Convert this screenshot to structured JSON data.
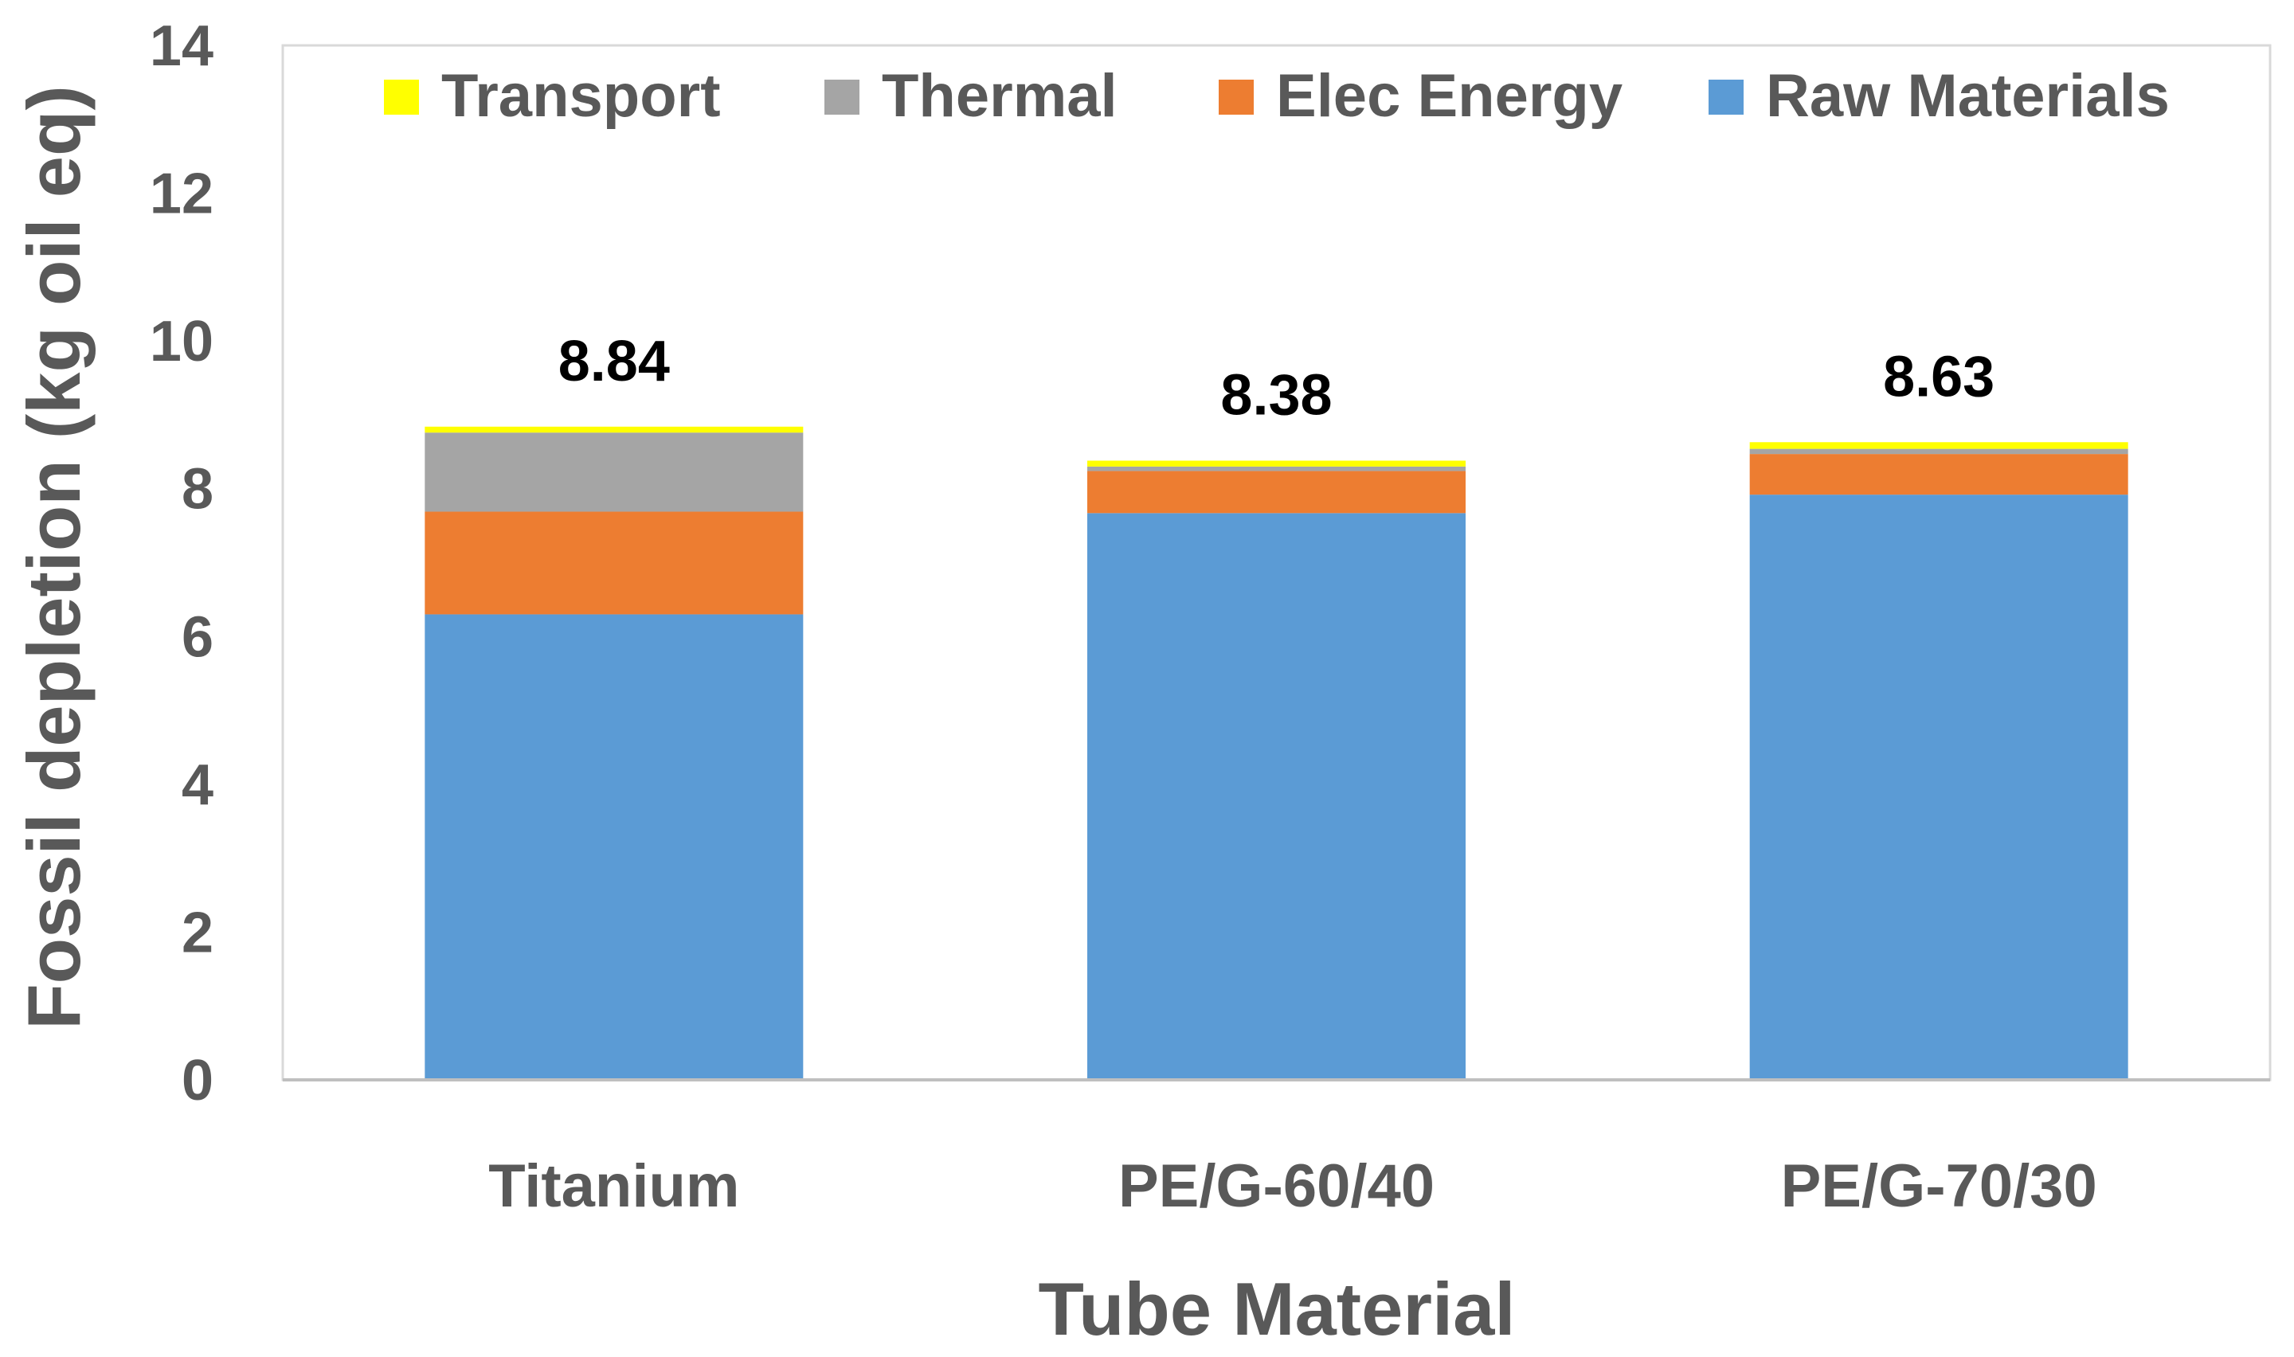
{
  "chart_data": {
    "type": "bar",
    "stacked": true,
    "xlabel": "Tube Material",
    "ylabel": "Fossil depletion (kg oil eq)",
    "ylim": [
      0,
      14
    ],
    "yticks": [
      0,
      2,
      4,
      6,
      8,
      10,
      12,
      14
    ],
    "grid": false,
    "legend_position": "top",
    "categories": [
      "Titanium",
      "PE/G-60/40",
      "PE/G-70/30"
    ],
    "series": [
      {
        "name": "Raw Materials",
        "color": "#5B9BD5",
        "values": [
          6.3,
          7.67,
          7.92
        ]
      },
      {
        "name": "Elec Energy",
        "color": "#ED7D31",
        "values": [
          1.39,
          0.57,
          0.55
        ]
      },
      {
        "name": "Thermal",
        "color": "#A5A5A5",
        "values": [
          1.07,
          0.06,
          0.07
        ]
      },
      {
        "name": "Transport",
        "color": "#FFFF00",
        "values": [
          0.08,
          0.08,
          0.09
        ]
      }
    ],
    "legend_order": [
      "Transport",
      "Thermal",
      "Elec Energy",
      "Raw Materials"
    ],
    "totals": [
      "8.84",
      "8.38",
      "8.63"
    ]
  }
}
